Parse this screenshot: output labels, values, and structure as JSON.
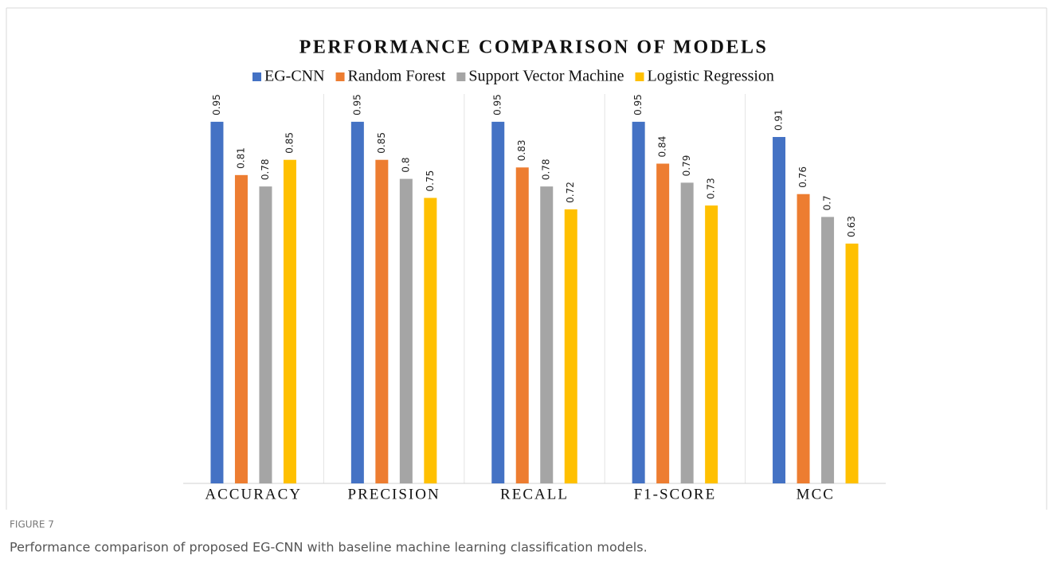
{
  "chart_data": {
    "type": "bar",
    "title": "PERFORMANCE COMPARISON OF MODELS",
    "categories": [
      "ACCURACY",
      "PRECISION",
      "RECALL",
      "F1-SCORE",
      "MCC"
    ],
    "series": [
      {
        "name": "EG-CNN",
        "color": "#4472c4",
        "values": [
          0.95,
          0.95,
          0.95,
          0.95,
          0.91
        ]
      },
      {
        "name": "Random Forest",
        "color": "#ed7d31",
        "values": [
          0.81,
          0.85,
          0.83,
          0.84,
          0.76
        ]
      },
      {
        "name": "Support Vector Machine",
        "color": "#a5a5a5",
        "values": [
          0.78,
          0.8,
          0.78,
          0.79,
          0.7
        ]
      },
      {
        "name": "Logistic Regression",
        "color": "#ffc000",
        "values": [
          0.85,
          0.75,
          0.72,
          0.73,
          0.63
        ]
      }
    ],
    "ylim": [
      0,
      1
    ],
    "legend": "top"
  },
  "figure_label": "FIGURE 7",
  "caption": "Performance comparison of proposed EG-CNN with baseline machine learning classification models."
}
